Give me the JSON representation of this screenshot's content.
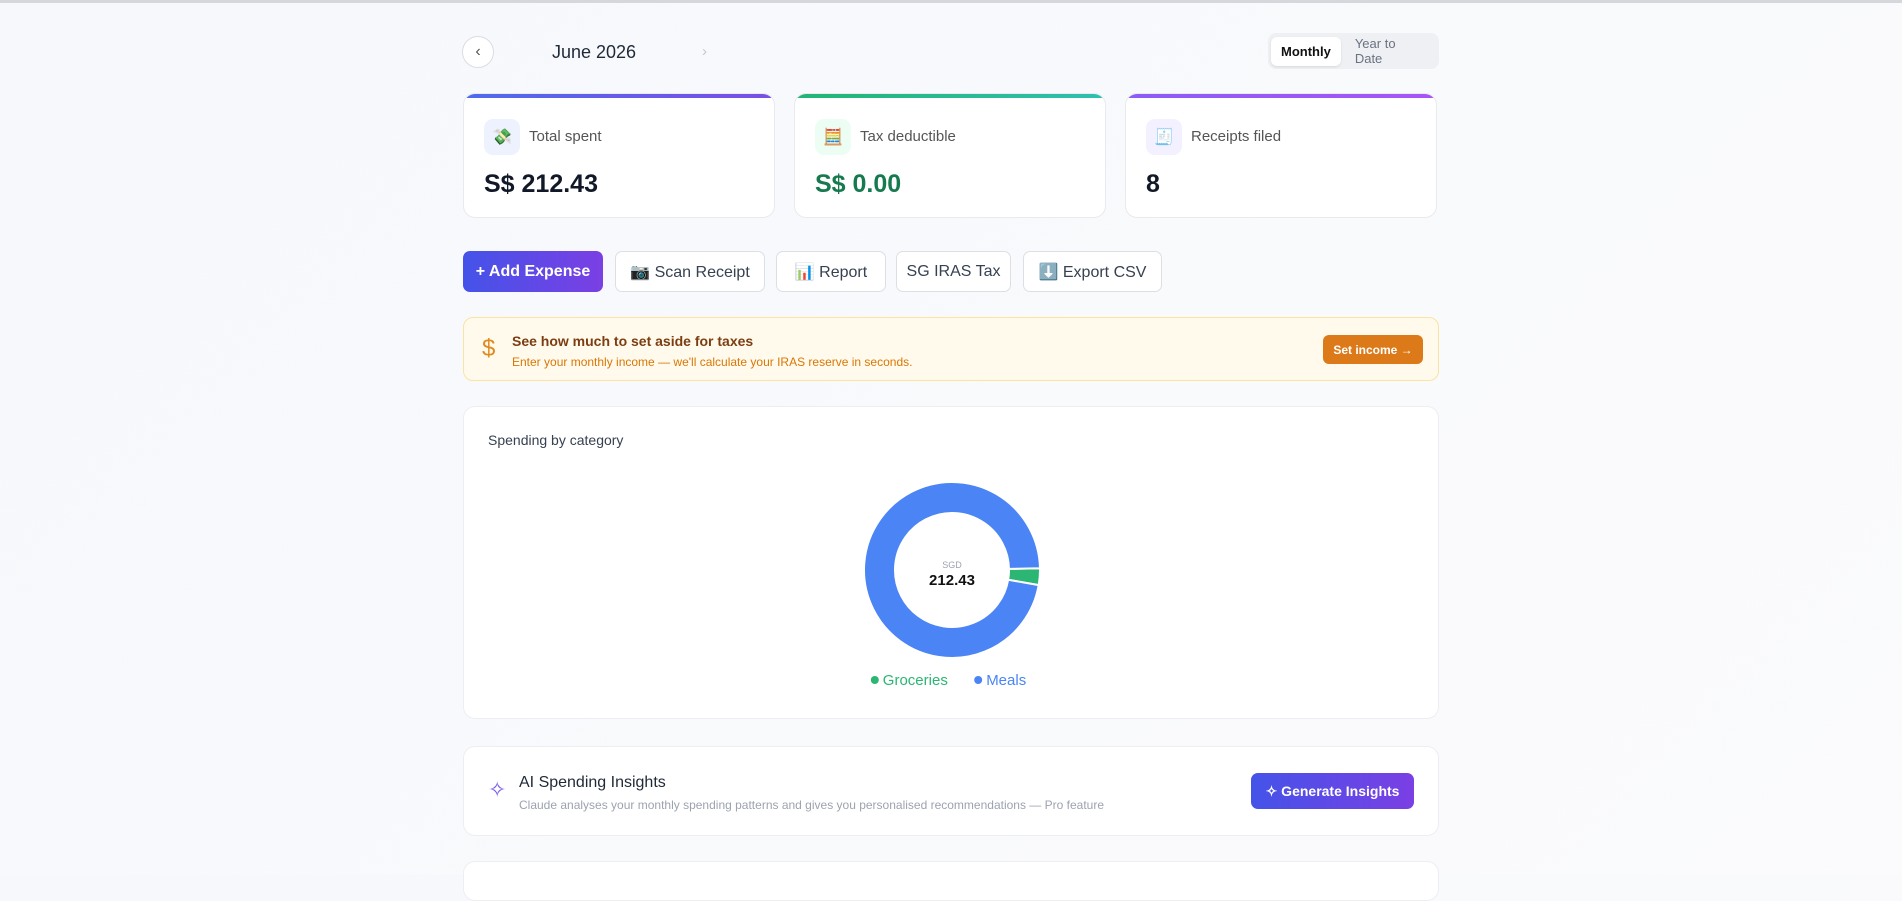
{
  "nav": {
    "prev": "‹",
    "month": "June 2026",
    "next": "›"
  },
  "toggle": [
    "Monthly",
    "Year to Date"
  ],
  "cards": [
    {
      "icon": "💸",
      "label": "Total spent",
      "value": "S$ 212.43"
    },
    {
      "icon": "🧮",
      "label": "Tax deductible",
      "value": "S$ 0.00"
    },
    {
      "icon": "🧾",
      "label": "Receipts filed",
      "value": "8"
    }
  ],
  "actions": [
    "+ Add Expense",
    "📷 Scan Receipt",
    "📊 Report",
    "SG IRAS Tax",
    "⬇️ Export CSV"
  ],
  "banner": {
    "icon": "$",
    "title": "See how much to set aside for taxes",
    "subtitle": "Enter your monthly income — we'll calculate your IRAS reserve in seconds.",
    "button": "Set income →"
  },
  "chart_data": {
    "type": "pie",
    "donut": true,
    "title": "Spending by category",
    "center_label": "SGD",
    "center_value": "212.43",
    "categories": [
      "Groceries",
      "Meals"
    ],
    "values": [
      6.5,
      205.93
    ],
    "colors": [
      "#2bb673",
      "#4a84f5"
    ]
  },
  "insights": {
    "icon": "✧",
    "title": "AI Spending Insights",
    "subtitle": "Claude analyses your monthly spending patterns and gives you personalised recommendations — Pro feature",
    "button": "✧ Generate Insights"
  }
}
